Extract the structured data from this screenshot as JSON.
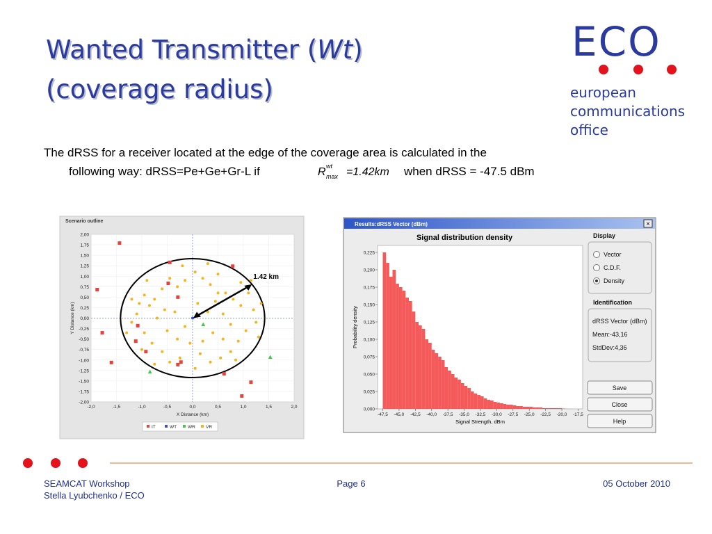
{
  "header": {
    "title_pre": "Wanted Transmitter (",
    "title_em": "Wt",
    "title_post": ")",
    "title_line2": "(coverage radius)"
  },
  "logo": {
    "mark": "ECO",
    "line1": "european",
    "line2": "communications",
    "line3": "office"
  },
  "body": {
    "text1": "The dRSS for a receiver located at the edge of the coverage area is calculated in the",
    "text2": "following way: dRSS=Pe+Ge+Gr-L if",
    "formula_r": "R",
    "formula_sup": "wt",
    "formula_sub": "max",
    "formula_eq": "=1.42km",
    "text3": "when dRSS = -47.5 dBm"
  },
  "chart_data": [
    {
      "type": "scatter",
      "title": "Scenario outline",
      "xlabel": "X Distance (km)",
      "ylabel": "Y Distance (km)",
      "xlim": [
        -2,
        2
      ],
      "ylim": [
        -2,
        2
      ],
      "xticks": [
        {
          "value": -2,
          "label": "-2,0"
        },
        {
          "value": -1.5,
          "label": "-1,5"
        },
        {
          "value": -1,
          "label": "-1,0"
        },
        {
          "value": -0.5,
          "label": "-0,5"
        },
        {
          "value": 0,
          "label": "0,0"
        },
        {
          "value": 0.5,
          "label": "0,5"
        },
        {
          "value": 1,
          "label": "1,0"
        },
        {
          "value": 1.5,
          "label": "1,5"
        },
        {
          "value": 2,
          "label": "2,0"
        }
      ],
      "yticks": [
        {
          "value": -2,
          "label": "-2,00"
        },
        {
          "value": -1.75,
          "label": "-1,75"
        },
        {
          "value": -1.5,
          "label": "-1,50"
        },
        {
          "value": -1.25,
          "label": "-1,25"
        },
        {
          "value": -1,
          "label": "-1,00"
        },
        {
          "value": -0.75,
          "label": "-0,75"
        },
        {
          "value": -0.5,
          "label": "-0,50"
        },
        {
          "value": -0.25,
          "label": "-0,25"
        },
        {
          "value": 0,
          "label": "0,00"
        },
        {
          "value": 0.25,
          "label": "0,25"
        },
        {
          "value": 0.5,
          "label": "0,50"
        },
        {
          "value": 0.75,
          "label": "0,75"
        },
        {
          "value": 1,
          "label": "1,00"
        },
        {
          "value": 1.25,
          "label": "1,25"
        },
        {
          "value": 1.5,
          "label": "1,50"
        },
        {
          "value": 1.75,
          "label": "1,75"
        },
        {
          "value": 2,
          "label": "2,00"
        }
      ],
      "grid": true,
      "coverage_radius": 1.42,
      "annotation": "1.42 km",
      "series": [
        {
          "name": "IT",
          "color": "#e8403a",
          "marker": "square",
          "x": [
            -1.44,
            -0.45,
            0.79,
            -1.88,
            -0.48,
            -0.29,
            -1.08,
            -1.78,
            -1.12,
            -0.92,
            -1.6,
            -0.23,
            -0.29,
            0.62,
            1.15,
            0.97
          ],
          "y": [
            1.79,
            1.33,
            1.24,
            0.68,
            0.83,
            0.5,
            -0.18,
            -0.35,
            -0.55,
            -0.8,
            -1.06,
            -1.05,
            -1.11,
            -1.33,
            -1.53,
            -1.86
          ]
        },
        {
          "name": "WT",
          "color": "#3a4fd8",
          "marker": "circle",
          "x": [
            0
          ],
          "y": [
            0
          ]
        },
        {
          "name": "WR",
          "color": "#46c84a",
          "marker": "triangle",
          "x": [
            0.21,
            -0.84,
            1.53
          ],
          "y": [
            -0.15,
            -1.28,
            -0.93
          ]
        },
        {
          "name": "VR",
          "color": "#f5b31c",
          "marker": "circle",
          "x": [
            -1.05,
            -0.95,
            -0.85,
            -1.1,
            -0.75,
            -0.6,
            -0.45,
            -0.3,
            -0.15,
            0.05,
            0.2,
            0.35,
            0.5,
            0.65,
            0.8,
            0.95,
            1.1,
            1.2,
            1.25,
            1.05,
            0.9,
            0.75,
            0.55,
            0.35,
            0.15,
            -0.05,
            -0.25,
            -0.45,
            -0.6,
            -0.8,
            -0.95,
            -1.2,
            -1.0,
            -0.5,
            -0.35,
            -0.7,
            -0.55,
            0.1,
            0.3,
            0.45,
            0.6,
            0.75,
            0.4,
            0.2,
            -0.15,
            -0.3,
            0.95,
            1.15,
            0.6,
            0.5,
            -0.9,
            -1.2,
            -1.3,
            1.3,
            0.05,
            -0.2,
            0.3,
            0.85,
            -0.75,
            1.35
          ],
          "y": [
            0.35,
            0.55,
            0.3,
            0.1,
            0.45,
            0.7,
            0.95,
            0.75,
            0.9,
            1.1,
            0.95,
            0.8,
            1.05,
            0.6,
            0.45,
            0.3,
            0.6,
            0.2,
            -0.1,
            -0.3,
            -0.55,
            -0.8,
            -0.95,
            -1.05,
            -0.85,
            -0.6,
            -0.95,
            -1.05,
            -0.8,
            -0.6,
            -0.35,
            -0.1,
            -0.75,
            -0.3,
            0.15,
            0.0,
            0.2,
            0.35,
            0.15,
            0.4,
            0.1,
            -0.15,
            -0.35,
            -0.55,
            -0.2,
            -0.5,
            0.85,
            0.9,
            -0.5,
            0.6,
            0.9,
            0.45,
            -0.35,
            -0.45,
            -1.2,
            1.25,
            1.3,
            -1.0,
            -1.1,
            0.35
          ]
        }
      ]
    },
    {
      "type": "histogram",
      "window_title": "Results:dRSS Vector (dBm)",
      "title": "Signal distribution density",
      "xlabel": "Signal Strength, dBm",
      "ylabel": "Probability density",
      "color": "#f55a5a",
      "xlim": [
        -48.3,
        -16.8
      ],
      "ylim": [
        0,
        0.235
      ],
      "xticks": [
        {
          "value": -47.5,
          "label": "-47,5"
        },
        {
          "value": -45,
          "label": "-45,0"
        },
        {
          "value": -42.5,
          "label": "-42,5"
        },
        {
          "value": -40,
          "label": "-40,0"
        },
        {
          "value": -37.5,
          "label": "-37,5"
        },
        {
          "value": -35,
          "label": "-35,0"
        },
        {
          "value": -32.5,
          "label": "-32,5"
        },
        {
          "value": -30,
          "label": "-30,0"
        },
        {
          "value": -27.5,
          "label": "-27,5"
        },
        {
          "value": -25,
          "label": "-25,0"
        },
        {
          "value": -22.5,
          "label": "-22,5"
        },
        {
          "value": -20,
          "label": "-20,0"
        },
        {
          "value": -17.5,
          "label": "-17,5"
        }
      ],
      "yticks": [
        {
          "value": 0,
          "label": "0,000"
        },
        {
          "value": 0.025,
          "label": "0,025"
        },
        {
          "value": 0.05,
          "label": "0,050"
        },
        {
          "value": 0.075,
          "label": "0,075"
        },
        {
          "value": 0.1,
          "label": "0,100"
        },
        {
          "value": 0.125,
          "label": "0,125"
        },
        {
          "value": 0.15,
          "label": "0,150"
        },
        {
          "value": 0.175,
          "label": "0,175"
        },
        {
          "value": 0.2,
          "label": "0,200"
        },
        {
          "value": 0.225,
          "label": "0,225"
        }
      ],
      "bins": [
        -47.5,
        -47,
        -46.5,
        -46,
        -45.5,
        -45,
        -44.5,
        -44,
        -43.5,
        -43,
        -42.5,
        -42,
        -41.5,
        -41,
        -40.5,
        -40,
        -39.5,
        -39,
        -38.5,
        -38,
        -37.5,
        -37,
        -36.5,
        -36,
        -35.5,
        -35,
        -34.5,
        -34,
        -33.5,
        -33,
        -32.5,
        -32,
        -31.5,
        -31,
        -30.5,
        -30,
        -29.5,
        -29,
        -28.5,
        -28,
        -27.5,
        -27,
        -26.5,
        -26,
        -25.5,
        -25,
        -24.5,
        -24,
        -23.5,
        -23,
        -22.5,
        -22,
        -21.5,
        -21,
        -20.5,
        -20,
        -19.5
      ],
      "values": [
        0.225,
        0.21,
        0.19,
        0.2,
        0.18,
        0.175,
        0.17,
        0.16,
        0.155,
        0.14,
        0.125,
        0.12,
        0.115,
        0.1,
        0.095,
        0.085,
        0.08,
        0.075,
        0.07,
        0.06,
        0.055,
        0.05,
        0.045,
        0.042,
        0.037,
        0.033,
        0.03,
        0.025,
        0.022,
        0.02,
        0.018,
        0.015,
        0.013,
        0.012,
        0.01,
        0.009,
        0.008,
        0.007,
        0.006,
        0.006,
        0.005,
        0.004,
        0.004,
        0.003,
        0.003,
        0.003,
        0.002,
        0.002,
        0.002,
        0.001,
        0.001,
        0.001,
        0.001,
        0.001,
        0.001,
        0.0005
      ],
      "display_title": "Display",
      "options": [
        "Vector",
        "C.D.F.",
        "Density"
      ],
      "selected": 2,
      "identification_title": "Identification",
      "identification": [
        "dRSS Vector (dBm)",
        "Mean:-43,16",
        "StdDev:4,36"
      ],
      "buttons": [
        "Save",
        "Close",
        "Help"
      ]
    }
  ],
  "footer": {
    "event": "SEAMCAT Workshop",
    "author": "Stella Lyubchenko / ECO",
    "page": "Page 6",
    "date": "05 October 2010"
  }
}
